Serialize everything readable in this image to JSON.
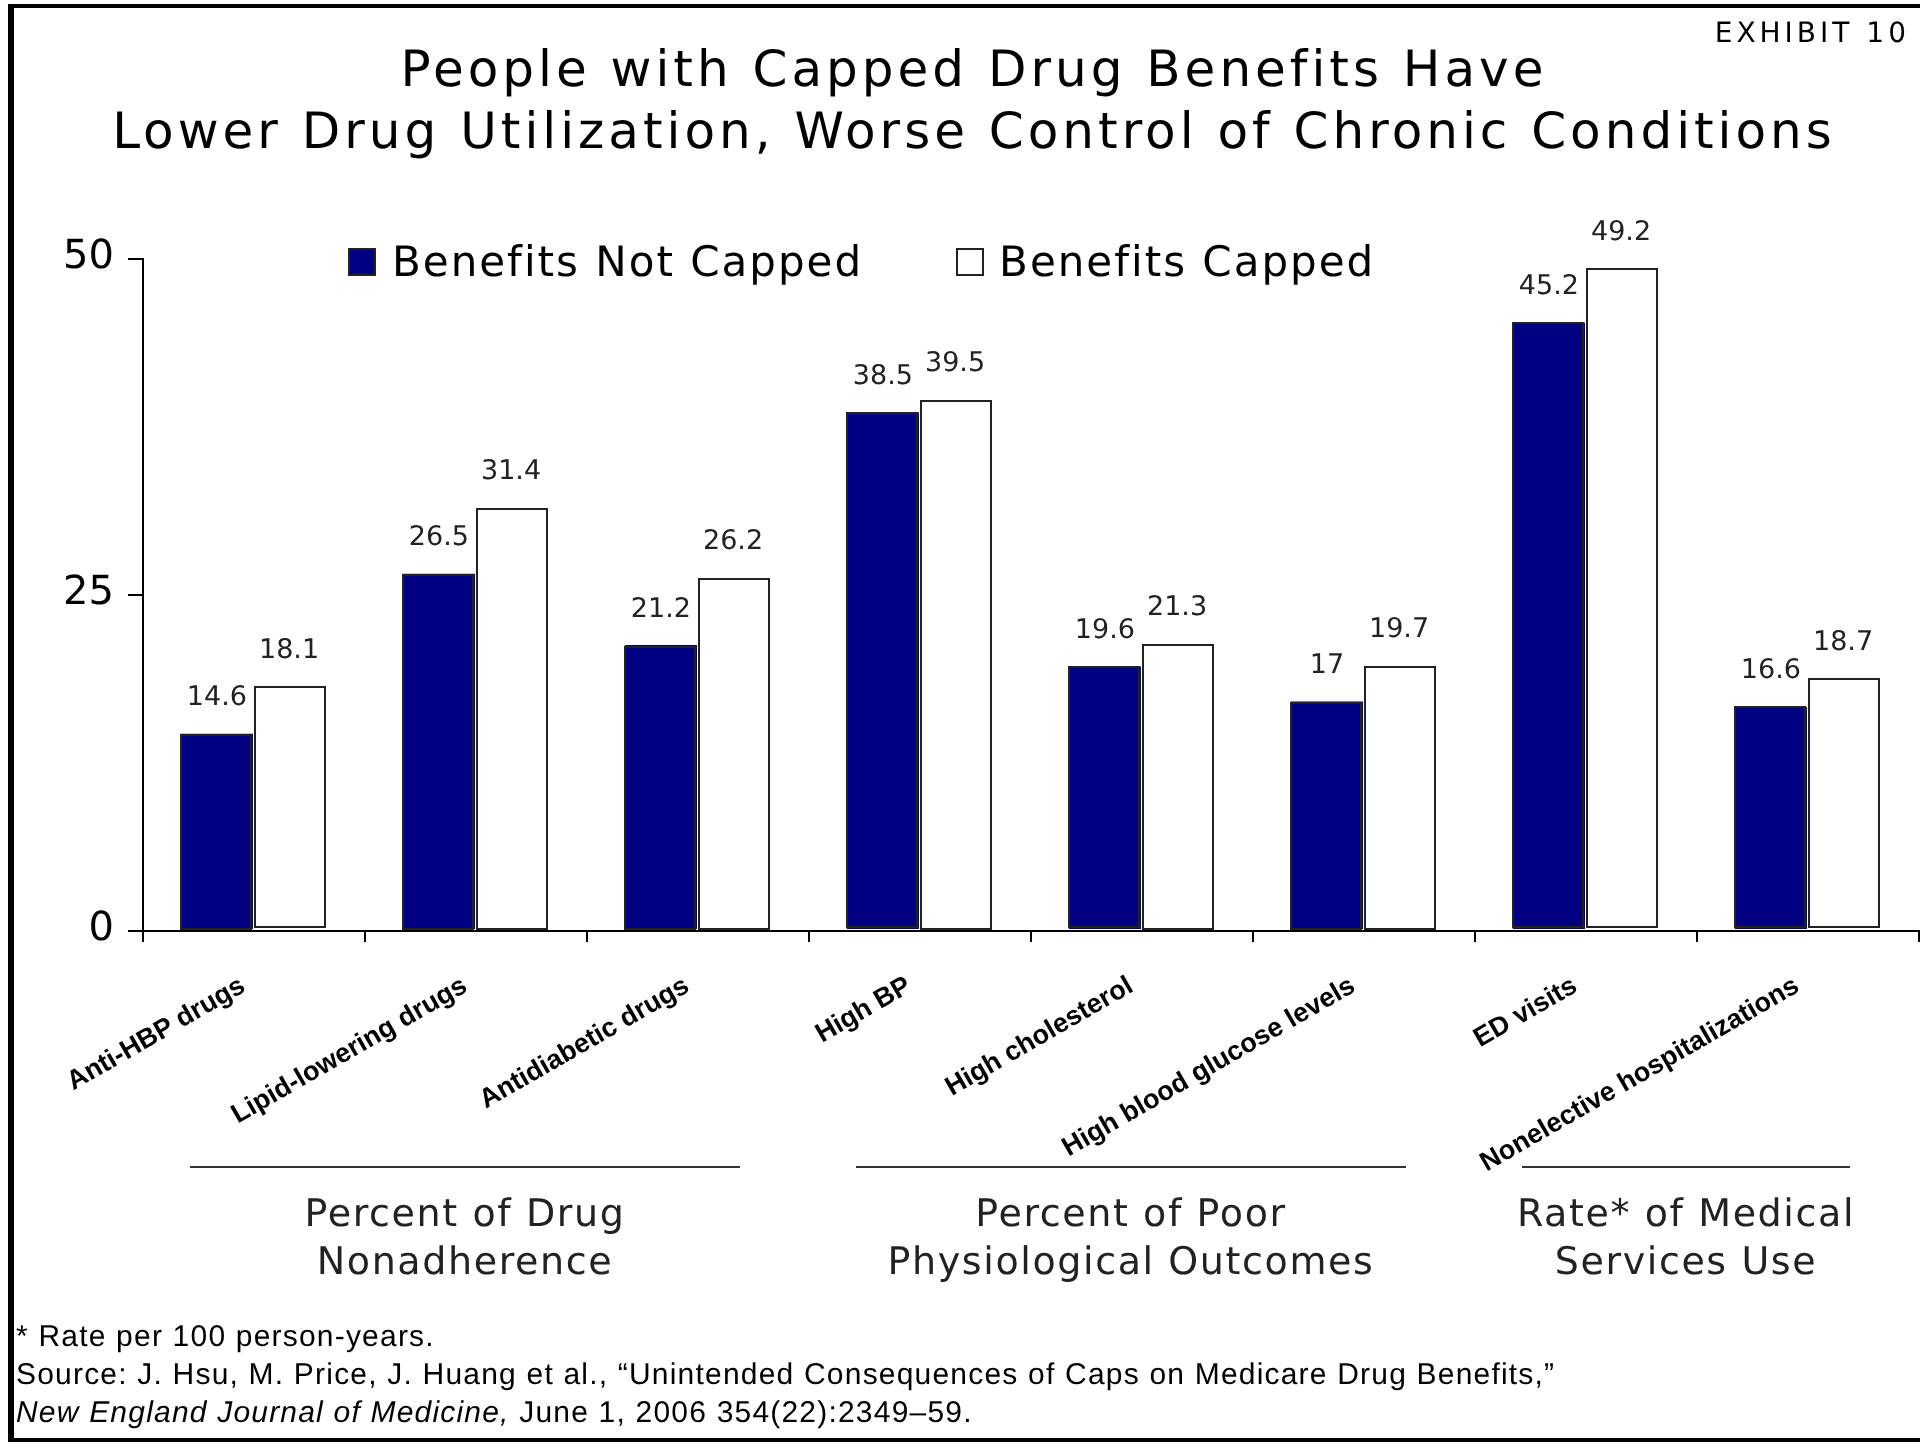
{
  "chart_data": {
    "type": "bar",
    "title": "People with Capped Drug Benefits Have\nLower Drug Utilization, Worse Control of Chronic Conditions",
    "categories": [
      "Anti-HBP drugs",
      "Lipid-lowering drugs",
      "Antidiabetic drugs",
      "High BP",
      "High cholesterol",
      "High blood glucose levels",
      "ED visits",
      "Nonelective hospitalizations"
    ],
    "series": [
      {
        "name": "Benefits Not Capped",
        "color": "#000080",
        "values": [
          14.6,
          26.5,
          21.2,
          38.5,
          19.6,
          17,
          45.2,
          16.6
        ]
      },
      {
        "name": "Benefits Capped",
        "color": "#ffffff",
        "values": [
          18.1,
          31.4,
          26.2,
          39.5,
          21.3,
          19.7,
          49.2,
          18.7
        ]
      }
    ],
    "ylim": [
      0,
      50
    ],
    "yticks": [
      0,
      25,
      50
    ],
    "grid": false,
    "legend": "top",
    "data_labels": true,
    "annotations": [
      "EXHIBIT 10",
      "Percent of Drug\nNonadherence",
      "Percent of Poor\nPhysiological Outcomes",
      "Rate* of Medical\nServices Use",
      "* Rate per 100 person-years.",
      "Source: J. Hsu, M. Price, J. Huang et al., “Unintended Consequences of Caps on Medicare Drug Benefits,”\nNew England Journal of Medicine, June 1, 2006 354(22):2349–59."
    ]
  }
}
